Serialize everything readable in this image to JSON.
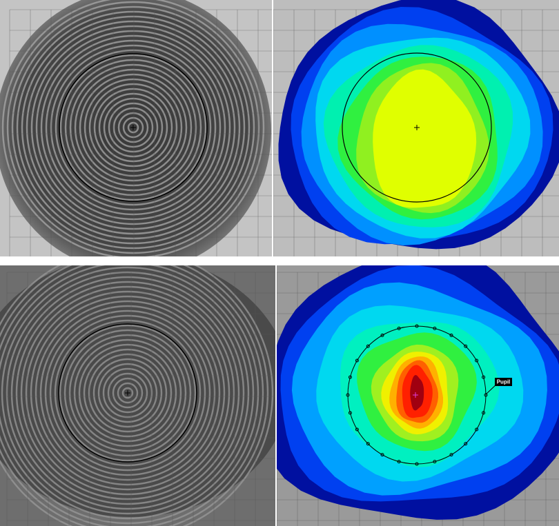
{
  "annotation": {
    "label": "Pupil"
  }
}
